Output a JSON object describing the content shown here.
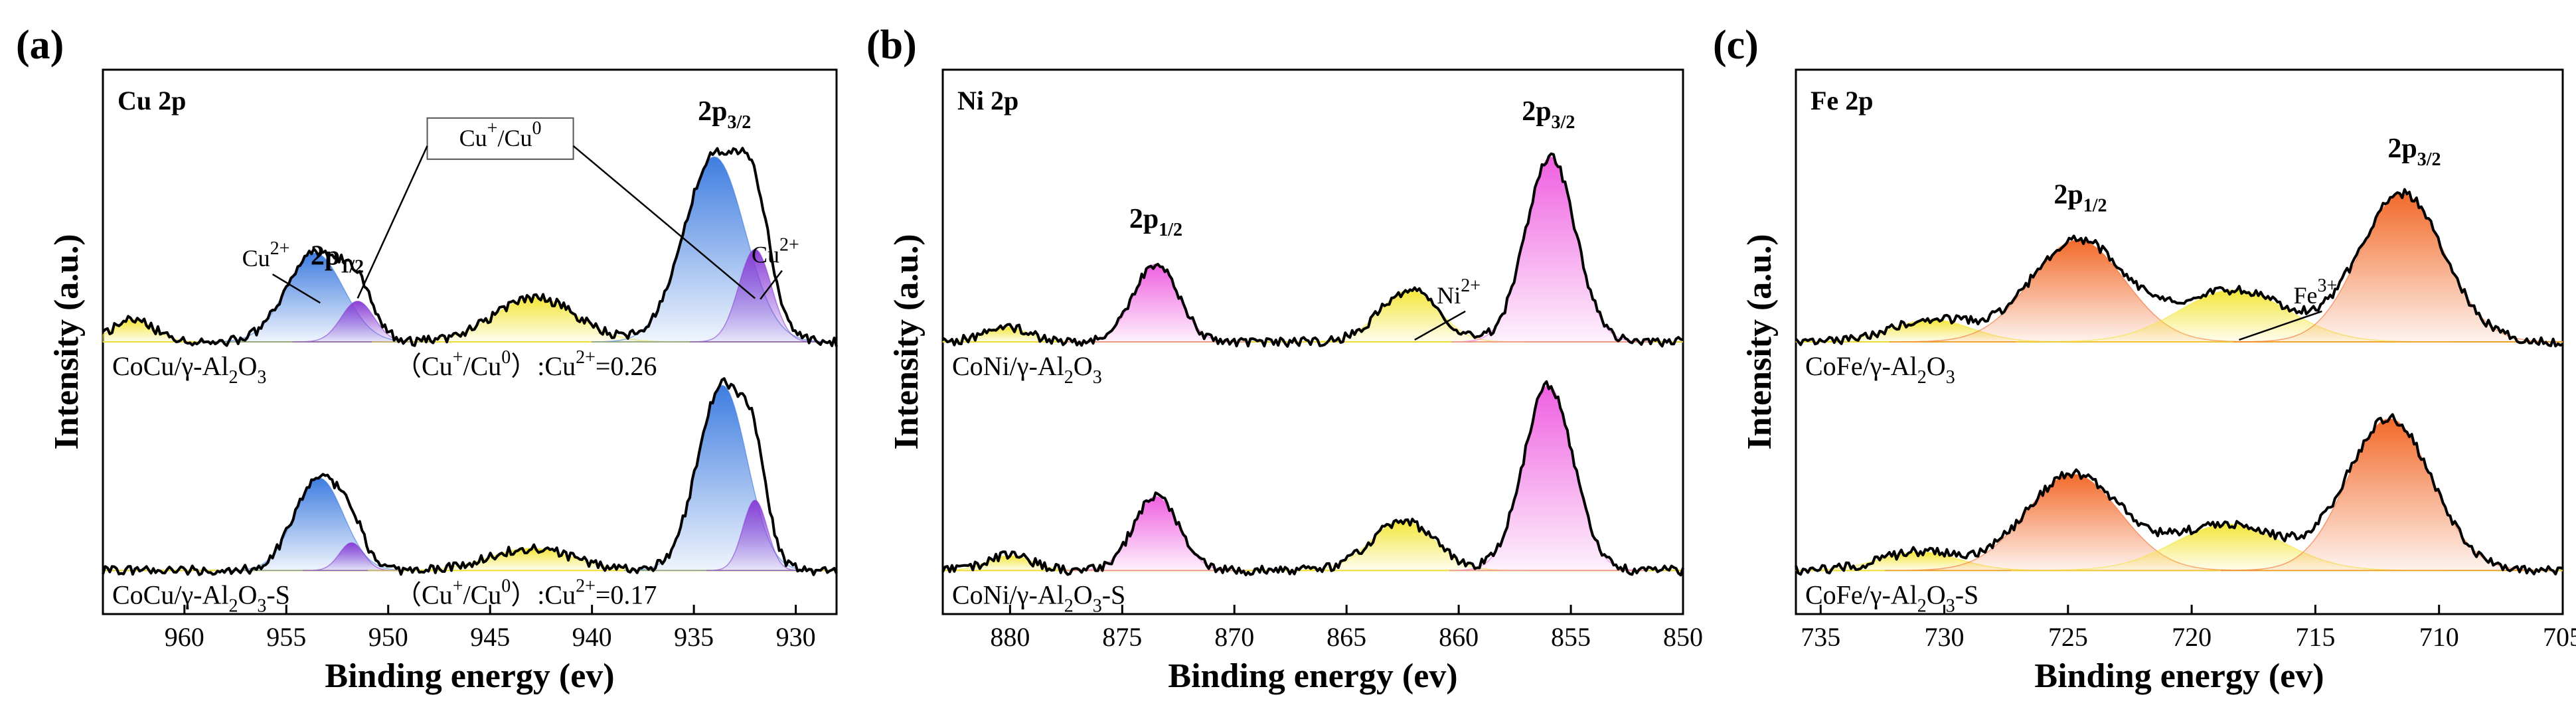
{
  "figure": {
    "shared_xlabel": "Binding energy (ev)",
    "shared_ylabel": "Intensity (a.u.)"
  },
  "chart_data": [
    {
      "type": "line",
      "panel_letter": "(a)",
      "title": "Cu 2p",
      "xlabel": "Binding energy (ev)",
      "ylabel": "Intensity (a.u.)",
      "xlim": [
        964,
        928
      ],
      "xticks": [
        960,
        955,
        950,
        945,
        940,
        935,
        930
      ],
      "grid": false,
      "peak_labels": [
        {
          "text": "2p",
          "sub": "1/2",
          "x": 952.5
        },
        {
          "text": "2p",
          "sub": "3/2",
          "x": 933.5
        }
      ],
      "species_labels": [
        {
          "text": "Cu",
          "sup": "2+",
          "x": 956.0
        },
        {
          "text": "Cu",
          "sup": "2+",
          "x": 931.0
        }
      ],
      "boxed_label": {
        "text": "Cu",
        "sup1": "+",
        "mid": "/Cu",
        "sup2": "0"
      },
      "series": [
        {
          "name": "CoCu/γ-Al2O3",
          "label_main": "CoCu/γ-Al",
          "label_sub1": "2",
          "label_mid": "O",
          "label_sub2": "3",
          "ratio_label": {
            "prefix": "（Cu",
            "sup1": "+",
            "mid": "/Cu",
            "sup2": "0",
            "suffix": "）:Cu",
            "sup3": "2+",
            "value": "=0.26"
          },
          "peaks": [
            {
              "center": 962.5,
              "height": 0.12,
              "width": 1.0,
              "color": "#f4e63a"
            },
            {
              "center": 953.6,
              "height": 0.48,
              "width": 1.4,
              "color": "#3f7de0"
            },
            {
              "center": 951.5,
              "height": 0.22,
              "width": 0.8,
              "color": "#8a3fd6"
            },
            {
              "center": 942.8,
              "height": 0.24,
              "width": 2.0,
              "color": "#f4e63a"
            },
            {
              "center": 934.0,
              "height": 1.0,
              "width": 1.5,
              "color": "#3f7de0"
            },
            {
              "center": 932.0,
              "height": 0.5,
              "width": 0.8,
              "color": "#8a3fd6"
            }
          ]
        },
        {
          "name": "CoCu/γ-Al2O3-S",
          "label_main": "CoCu/γ-Al",
          "label_sub1": "2",
          "label_mid": "O",
          "label_sub2": "3",
          "label_tail": "-S",
          "ratio_label": {
            "prefix": "（Cu",
            "sup1": "+",
            "mid": "/Cu",
            "sup2": "0",
            "suffix": "）:Cu",
            "sup3": "2+",
            "value": "=0.17"
          },
          "peaks": [
            {
              "center": 953.4,
              "height": 0.5,
              "width": 1.2,
              "color": "#3f7de0"
            },
            {
              "center": 951.8,
              "height": 0.15,
              "width": 0.6,
              "color": "#8a3fd6"
            },
            {
              "center": 943.0,
              "height": 0.12,
              "width": 2.0,
              "color": "#f4e63a"
            },
            {
              "center": 933.6,
              "height": 1.0,
              "width": 1.2,
              "color": "#3f7de0"
            },
            {
              "center": 932.0,
              "height": 0.38,
              "width": 0.6,
              "color": "#8a3fd6"
            }
          ]
        }
      ]
    },
    {
      "type": "line",
      "panel_letter": "(b)",
      "title": "Ni 2p",
      "xlabel": "Binding energy (ev)",
      "ylabel": "Intensity (a.u.)",
      "xlim": [
        883,
        850
      ],
      "xticks": [
        880,
        875,
        870,
        865,
        860,
        855,
        850
      ],
      "grid": false,
      "peak_labels": [
        {
          "text": "2p",
          "sub": "1/2",
          "x": 873.5
        },
        {
          "text": "2p",
          "sub": "3/2",
          "x": 856.0
        }
      ],
      "species_labels": [
        {
          "text": "Ni",
          "sup": "2+",
          "x": 860.0
        }
      ],
      "series": [
        {
          "name": "CoNi/γ-Al2O3",
          "label_main": "CoNi/γ-Al",
          "label_sub1": "2",
          "label_mid": "O",
          "label_sub2": "3",
          "peaks": [
            {
              "center": 880.2,
              "height": 0.08,
              "width": 1.0,
              "color": "#f4e63a"
            },
            {
              "center": 873.5,
              "height": 0.42,
              "width": 1.0,
              "color": "#ef5fe0"
            },
            {
              "center": 862.2,
              "height": 0.28,
              "width": 1.3,
              "color": "#f4e63a"
            },
            {
              "center": 855.9,
              "height": 1.0,
              "width": 1.1,
              "color": "#ef5fe0"
            }
          ]
        },
        {
          "name": "CoNi/γ-Al2O3-S",
          "label_main": "CoNi/γ-Al",
          "label_sub1": "2",
          "label_mid": "O",
          "label_sub2": "3",
          "label_tail": "-S",
          "peaks": [
            {
              "center": 880.0,
              "height": 0.08,
              "width": 1.0,
              "color": "#f4e63a"
            },
            {
              "center": 873.5,
              "height": 0.4,
              "width": 1.0,
              "color": "#ef5fe0"
            },
            {
              "center": 862.5,
              "height": 0.27,
              "width": 1.4,
              "color": "#f4e63a"
            },
            {
              "center": 856.0,
              "height": 1.0,
              "width": 1.1,
              "color": "#ef5fe0"
            }
          ]
        }
      ]
    },
    {
      "type": "line",
      "panel_letter": "(c)",
      "title": "Fe 2p",
      "xlabel": "Binding energy (ev)",
      "ylabel": "Intensity (a.u.)",
      "xlim": [
        736,
        705
      ],
      "xticks": [
        735,
        730,
        725,
        720,
        715,
        710,
        705
      ],
      "grid": false,
      "peak_labels": [
        {
          "text": "2p",
          "sub": "1/2",
          "x": 724.5
        },
        {
          "text": "2p",
          "sub": "3/2",
          "x": 711.0
        }
      ],
      "species_labels": [
        {
          "text": "Fe",
          "sup": "3+",
          "x": 715.0
        }
      ],
      "series": [
        {
          "name": "CoFe/γ-Al2O3",
          "label_main": "CoFe/γ-Al",
          "label_sub1": "2",
          "label_mid": "O",
          "label_sub2": "3",
          "peaks": [
            {
              "center": 730.5,
              "height": 0.12,
              "width": 1.6,
              "color": "#f4e63a"
            },
            {
              "center": 724.6,
              "height": 0.55,
              "width": 1.9,
              "color": "#f26a2a"
            },
            {
              "center": 718.3,
              "height": 0.28,
              "width": 2.2,
              "color": "#f4e63a"
            },
            {
              "center": 711.5,
              "height": 0.8,
              "width": 1.7,
              "color": "#f26a2a"
            }
          ]
        },
        {
          "name": "CoFe/γ-Al2O3-S",
          "label_main": "CoFe/γ-Al",
          "label_sub1": "2",
          "label_mid": "O",
          "label_sub2": "3",
          "label_tail": "-S",
          "peaks": [
            {
              "center": 731.0,
              "height": 0.1,
              "width": 1.6,
              "color": "#f4e63a"
            },
            {
              "center": 724.8,
              "height": 0.52,
              "width": 1.9,
              "color": "#f26a2a"
            },
            {
              "center": 718.5,
              "height": 0.25,
              "width": 2.2,
              "color": "#f4e63a"
            },
            {
              "center": 712.0,
              "height": 0.82,
              "width": 1.7,
              "color": "#f26a2a"
            }
          ]
        }
      ]
    }
  ]
}
